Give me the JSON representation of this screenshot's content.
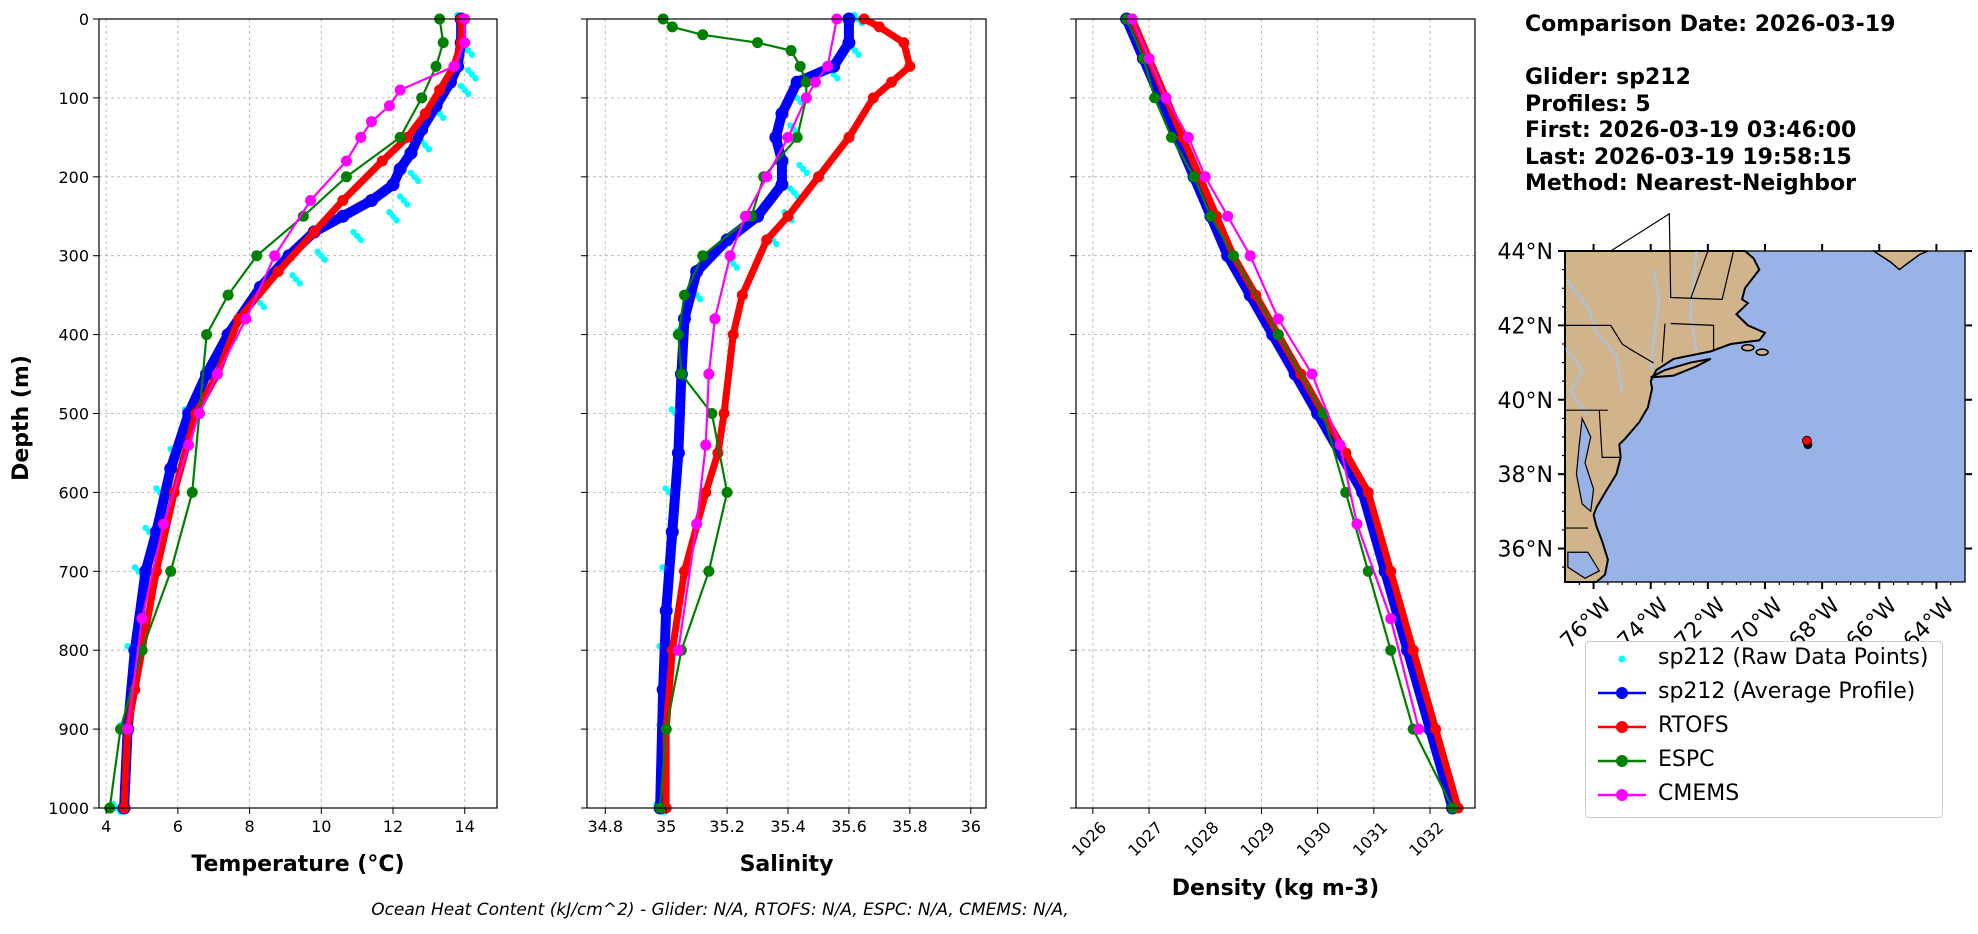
{
  "info": {
    "comparison_date": "Comparison Date: 2026-03-19",
    "glider": "Glider: sp212",
    "profiles": "Profiles: 5",
    "first": "First: 2026-03-19 03:46:00",
    "last": "Last: 2026-03-19 19:58:15",
    "method": "Method: Nearest-Neighbor"
  },
  "footer": "Ocean Heat Content (kJ/cm^2) - Glider: N/A,  RTOFS: N/A,  ESPC: N/A,  CMEMS: N/A,",
  "colors": {
    "raw": "#00ffff",
    "avg": "#0000ff",
    "rtofs": "#ff0000",
    "espc": "#008000",
    "cmems": "#ff00ff",
    "land": "#d2b48c",
    "ocean": "#99b3e6",
    "rivers": "#a3c4e6"
  },
  "legend": [
    {
      "key": "raw",
      "label": "sp212 (Raw Data Points)",
      "style": "dot"
    },
    {
      "key": "avg",
      "label": "sp212 (Average Profile)",
      "style": "line"
    },
    {
      "key": "rtofs",
      "label": "RTOFS",
      "style": "line"
    },
    {
      "key": "espc",
      "label": "ESPC",
      "style": "line"
    },
    {
      "key": "cmems",
      "label": "CMEMS",
      "style": "line"
    }
  ],
  "chart_data": [
    {
      "type": "line",
      "xlabel": "Temperature (°C)",
      "ylabel": "Depth (m)",
      "xlim": [
        3.8,
        14.9
      ],
      "ylim": [
        1000,
        0
      ],
      "xticks": [
        4,
        6,
        8,
        10,
        12,
        14
      ],
      "yticks": [
        0,
        100,
        200,
        300,
        400,
        500,
        600,
        700,
        800,
        900,
        1000
      ],
      "grid": true,
      "series": [
        {
          "name": "sp212 (Raw Data Points)",
          "key": "raw",
          "x": [
            13.9,
            14.1,
            14.2,
            14.0,
            13.3,
            12.9,
            12.6,
            12.3,
            12.0,
            11.0,
            10.0,
            9.3,
            8.3,
            7.5,
            6.9,
            6.3,
            5.9,
            5.5,
            5.2,
            4.9,
            4.7,
            4.5,
            4.3
          ],
          "y": [
            0,
            40,
            70,
            90,
            120,
            160,
            200,
            230,
            250,
            275,
            300,
            330,
            360,
            400,
            450,
            500,
            550,
            600,
            650,
            700,
            800,
            900,
            1000
          ]
        },
        {
          "name": "sp212 (Average Profile)",
          "key": "avg",
          "x": [
            13.9,
            13.9,
            13.8,
            13.6,
            13.2,
            12.8,
            12.5,
            12.2,
            12.0,
            11.4,
            10.6,
            9.8,
            9.1,
            8.3,
            7.4,
            6.8,
            6.3,
            5.8,
            5.4,
            5.1,
            4.8,
            4.6,
            4.5
          ],
          "y": [
            0,
            30,
            60,
            80,
            110,
            140,
            170,
            190,
            210,
            230,
            250,
            270,
            300,
            340,
            400,
            450,
            500,
            570,
            650,
            700,
            800,
            900,
            1000
          ]
        },
        {
          "name": "RTOFS",
          "key": "rtofs",
          "x": [
            13.9,
            13.9,
            13.7,
            13.3,
            12.9,
            12.4,
            11.7,
            10.6,
            9.8,
            8.8,
            7.7,
            7.1,
            6.5,
            5.9,
            5.4,
            5.0,
            4.8,
            4.6,
            4.5
          ],
          "y": [
            0,
            30,
            60,
            90,
            120,
            150,
            180,
            230,
            270,
            320,
            380,
            450,
            500,
            600,
            700,
            800,
            850,
            900,
            1000
          ]
        },
        {
          "name": "ESPC",
          "key": "espc",
          "x": [
            13.3,
            13.4,
            13.2,
            12.8,
            12.2,
            10.7,
            9.5,
            8.2,
            7.4,
            6.8,
            6.6,
            6.4,
            5.8,
            5.0,
            4.4,
            4.1
          ],
          "y": [
            0,
            30,
            60,
            100,
            150,
            200,
            250,
            300,
            350,
            400,
            500,
            600,
            700,
            800,
            900,
            1000
          ]
        },
        {
          "name": "CMEMS",
          "key": "cmems",
          "x": [
            14.0,
            14.0,
            13.7,
            12.2,
            11.9,
            11.4,
            11.1,
            10.7,
            9.7,
            8.7,
            7.9,
            7.1,
            6.6,
            6.3,
            5.6,
            5.0,
            4.6
          ],
          "y": [
            0,
            30,
            60,
            90,
            110,
            130,
            150,
            180,
            230,
            300,
            380,
            450,
            500,
            540,
            640,
            760,
            900
          ]
        }
      ]
    },
    {
      "type": "line",
      "xlabel": "Salinity",
      "xlim": [
        34.74,
        36.05
      ],
      "ylim": [
        1000,
        0
      ],
      "xticks": [
        34.8,
        35.0,
        35.2,
        35.4,
        35.6,
        35.8,
        36.0
      ],
      "yticks": [
        0,
        100,
        200,
        300,
        400,
        500,
        600,
        700,
        800,
        900,
        1000
      ],
      "grid": true,
      "series": [
        {
          "name": "sp212 (Raw Data Points)",
          "key": "raw",
          "x": [
            35.63,
            35.62,
            35.55,
            35.43,
            35.42,
            35.45,
            35.42,
            35.4,
            35.35,
            35.22,
            35.1,
            35.05,
            35.03,
            35.01,
            35.0,
            34.99,
            34.99,
            34.98
          ],
          "y": [
            0,
            40,
            70,
            100,
            140,
            190,
            220,
            250,
            280,
            310,
            350,
            400,
            500,
            600,
            700,
            800,
            900,
            1000
          ]
        },
        {
          "name": "sp212 (Average Profile)",
          "key": "avg",
          "x": [
            35.6,
            35.6,
            35.55,
            35.43,
            35.38,
            35.36,
            35.38,
            35.38,
            35.3,
            35.2,
            35.1,
            35.06,
            35.05,
            35.04,
            35.02,
            35.0,
            34.99,
            34.98
          ],
          "y": [
            0,
            30,
            60,
            80,
            120,
            150,
            180,
            210,
            250,
            280,
            320,
            380,
            450,
            550,
            650,
            750,
            850,
            1000
          ]
        },
        {
          "name": "RTOFS",
          "key": "rtofs",
          "x": [
            35.65,
            35.7,
            35.78,
            35.8,
            35.74,
            35.68,
            35.6,
            35.5,
            35.4,
            35.33,
            35.25,
            35.22,
            35.19,
            35.17,
            35.13,
            35.06,
            35.02,
            35.0,
            35.0
          ],
          "y": [
            0,
            10,
            30,
            60,
            80,
            100,
            150,
            200,
            250,
            280,
            350,
            400,
            500,
            550,
            600,
            700,
            800,
            900,
            1000
          ]
        },
        {
          "name": "ESPC",
          "key": "espc",
          "x": [
            34.99,
            35.02,
            35.12,
            35.3,
            35.41,
            35.44,
            35.46,
            35.46,
            35.43,
            35.32,
            35.28,
            35.12,
            35.06,
            35.04,
            35.05,
            35.15,
            35.2,
            35.14,
            35.05,
            35.0,
            34.98
          ],
          "y": [
            0,
            10,
            20,
            30,
            40,
            60,
            80,
            100,
            150,
            200,
            250,
            300,
            350,
            400,
            450,
            500,
            600,
            700,
            800,
            900,
            1000
          ]
        },
        {
          "name": "CMEMS",
          "key": "cmems",
          "x": [
            35.56,
            35.53,
            35.49,
            35.46,
            35.4,
            35.33,
            35.26,
            35.21,
            35.16,
            35.14,
            35.13,
            35.1,
            35.04
          ],
          "y": [
            0,
            60,
            80,
            100,
            150,
            200,
            250,
            300,
            380,
            450,
            540,
            640,
            800
          ]
        }
      ]
    },
    {
      "type": "line",
      "xlabel": "Density (kg m-3)",
      "xlim": [
        1025.7,
        1032.8
      ],
      "ylim": [
        1000,
        0
      ],
      "xticks": [
        1026,
        1027,
        1028,
        1029,
        1030,
        1031,
        1032
      ],
      "yticks": [
        0,
        100,
        200,
        300,
        400,
        500,
        600,
        700,
        800,
        900,
        1000
      ],
      "grid": true,
      "series": [
        {
          "name": "sp212 (Average Profile)",
          "key": "avg",
          "x": [
            1026.6,
            1026.9,
            1027.2,
            1027.5,
            1027.8,
            1028.1,
            1028.4,
            1028.8,
            1029.2,
            1029.6,
            1030.0,
            1030.4,
            1030.8,
            1031.2,
            1031.6,
            1032.0,
            1032.4
          ],
          "y": [
            0,
            50,
            100,
            150,
            200,
            250,
            300,
            350,
            400,
            450,
            500,
            550,
            600,
            700,
            800,
            900,
            1000
          ]
        },
        {
          "name": "RTOFS",
          "key": "rtofs",
          "x": [
            1026.7,
            1027.0,
            1027.3,
            1027.6,
            1027.9,
            1028.2,
            1028.5,
            1028.9,
            1029.3,
            1029.7,
            1030.1,
            1030.5,
            1030.9,
            1031.3,
            1031.7,
            1032.1,
            1032.5
          ],
          "y": [
            0,
            50,
            100,
            150,
            200,
            250,
            300,
            350,
            400,
            450,
            500,
            550,
            600,
            700,
            800,
            900,
            1000
          ]
        },
        {
          "name": "ESPC",
          "key": "espc",
          "x": [
            1026.6,
            1026.9,
            1027.1,
            1027.4,
            1027.8,
            1028.1,
            1028.5,
            1029.3,
            1030.1,
            1030.5,
            1030.9,
            1031.3,
            1031.7,
            1032.4
          ],
          "y": [
            0,
            50,
            100,
            150,
            200,
            250,
            300,
            400,
            500,
            600,
            700,
            800,
            900,
            1000
          ]
        },
        {
          "name": "CMEMS",
          "key": "cmems",
          "x": [
            1026.7,
            1027.0,
            1027.3,
            1027.7,
            1028.0,
            1028.4,
            1028.8,
            1029.3,
            1029.9,
            1030.4,
            1030.7,
            1031.3,
            1031.8
          ],
          "y": [
            0,
            50,
            100,
            150,
            200,
            250,
            300,
            380,
            450,
            540,
            640,
            760,
            900
          ]
        }
      ]
    }
  ],
  "map": {
    "lat_ticks": [
      "44°N",
      "42°N",
      "40°N",
      "38°N",
      "36°N"
    ],
    "lon_ticks": [
      "76°W",
      "74°W",
      "72°W",
      "70°W",
      "68°W",
      "66°W",
      "64°W"
    ],
    "lat_values": [
      44,
      42,
      40,
      38,
      36
    ],
    "lon_values": [
      -76,
      -74,
      -72,
      -70,
      -68,
      -66,
      -64
    ],
    "extent": {
      "lon_min": -77,
      "lon_max": -63,
      "lat_min": 35.1,
      "lat_max": 44
    },
    "glider_position": {
      "lon": -68.5,
      "lat": 38.9
    }
  }
}
